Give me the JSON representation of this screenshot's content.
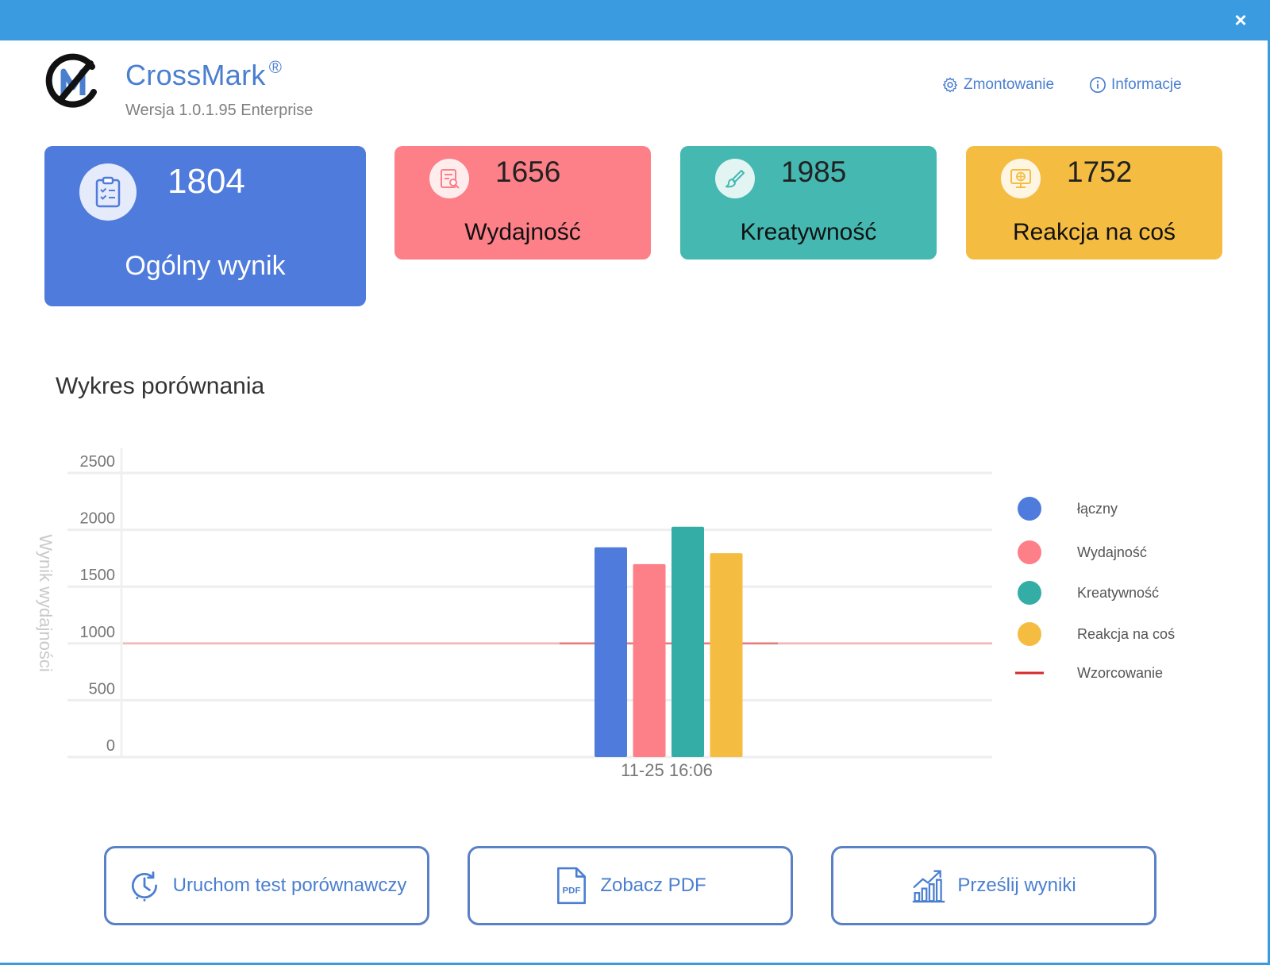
{
  "window": {
    "close_label": "×"
  },
  "header": {
    "app_name": "CrossMark",
    "trademark": "®",
    "version": "Wersja 1.0.1.95 Enterprise",
    "links": [
      {
        "label": "Zmontowanie",
        "icon": "gear-icon"
      },
      {
        "label": "Informacje",
        "icon": "info-icon"
      }
    ]
  },
  "cards": [
    {
      "score": "1804",
      "label": "Ogólny wynik",
      "color": "#4f7bdc",
      "icon": "clipboard-checklist-icon"
    },
    {
      "score": "1656",
      "label": "Wydajność",
      "color": "#fd7f88",
      "icon": "document-search-icon"
    },
    {
      "score": "1985",
      "label": "Kreatywność",
      "color": "#44b8b1",
      "icon": "brush-icon"
    },
    {
      "score": "1752",
      "label": "Reakcja na coś",
      "color": "#f5bc42",
      "icon": "globe-monitor-icon"
    }
  ],
  "section": {
    "title": "Wykres porównania"
  },
  "chart_data": {
    "type": "bar",
    "ylabel": "Wynik wydajności",
    "ylim": [
      0,
      2500
    ],
    "yticks": [
      "2500",
      "2000",
      "1500",
      "1000",
      "500",
      "0"
    ],
    "categories": [
      "11-25 16:06"
    ],
    "series": [
      {
        "name": "łączny",
        "values": [
          1804
        ],
        "color": "#4f7bdc"
      },
      {
        "name": "Wydajność",
        "values": [
          1656
        ],
        "color": "#fd7f88"
      },
      {
        "name": "Kreatywność",
        "values": [
          1985
        ],
        "color": "#33ada6"
      },
      {
        "name": "Reakcja na coś",
        "values": [
          1752
        ],
        "color": "#f5bc42"
      }
    ],
    "reference_line": {
      "name": "Wzorcowanie",
      "value": 1000,
      "color": "#d42a2a"
    },
    "grid": true,
    "legend": "right"
  },
  "buttons": [
    {
      "label": "Uruchom test porównawczy",
      "icon": "clock-refresh-icon"
    },
    {
      "label": "Zobacz PDF",
      "icon": "pdf-file-icon"
    },
    {
      "label": "Prześlij wyniki",
      "icon": "chart-upload-icon"
    }
  ]
}
